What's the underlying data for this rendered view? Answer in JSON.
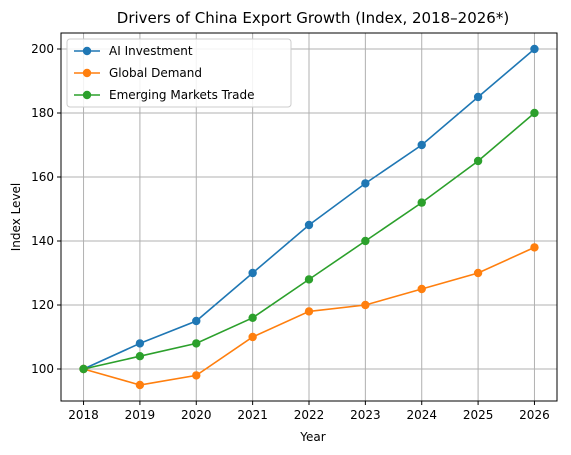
{
  "chart_data": {
    "type": "line",
    "title": "Drivers of China Export Growth (Index, 2018–2026*)",
    "xlabel": "Year",
    "ylabel": "Index Level",
    "x": [
      "2018",
      "2019",
      "2020",
      "2021",
      "2022",
      "2023",
      "2024",
      "2025",
      "2026"
    ],
    "xlim": [
      2017.6,
      2026.4
    ],
    "ylim": [
      90,
      205
    ],
    "yticks": [
      100,
      120,
      140,
      160,
      180,
      200
    ],
    "grid": true,
    "legend_position": "top-left",
    "series": [
      {
        "name": "AI Investment",
        "color": "#1f77b4",
        "values": [
          100,
          108,
          115,
          130,
          145,
          158,
          170,
          185,
          200
        ]
      },
      {
        "name": "Global Demand",
        "color": "#ff7f0e",
        "values": [
          100,
          95,
          98,
          110,
          118,
          120,
          125,
          130,
          138
        ]
      },
      {
        "name": "Emerging Markets Trade",
        "color": "#2ca02c",
        "values": [
          100,
          104,
          108,
          116,
          128,
          140,
          152,
          165,
          180
        ]
      }
    ]
  }
}
